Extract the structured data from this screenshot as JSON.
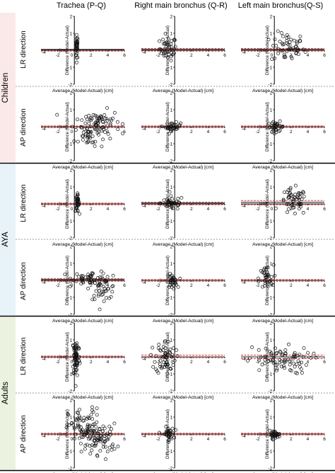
{
  "column_titles": [
    "Trachea (P-Q)",
    "Right main bronchus (Q-R)",
    "Left main bronchus(Q-S)"
  ],
  "groups": [
    {
      "label": "Children",
      "color": "#fbe9e9"
    },
    {
      "label": "AYA",
      "color": "#e7f3f8"
    },
    {
      "label": "Adults",
      "color": "#ebf2df"
    }
  ],
  "row_labels": [
    "LR direction",
    "AP direction",
    "LR direction",
    "AP direction",
    "LR direction",
    "AP direction"
  ],
  "axes": {
    "xlabel": "Average (Model-Actual) [cm]",
    "ylabel_line1": "Difference (Model-Actual)",
    "ylabel_line2": "[cm]",
    "xlim": [
      -4,
      6
    ],
    "ylim": [
      -2,
      2
    ],
    "xticks": [
      "-2",
      "0",
      "2",
      "4",
      "6"
    ],
    "xtick_values": [
      -2,
      0,
      2,
      4,
      6
    ],
    "x_minus4_label": "-4",
    "yticks": [
      "2",
      "1",
      "-1",
      "-2"
    ],
    "ytick_values": [
      2,
      1,
      -1,
      -2
    ]
  },
  "colors": {
    "mean_line": "#1a1a1a",
    "loa_line": "#d62020",
    "marker_edge": "#111111",
    "separator": "#000000",
    "dashed_separator": "#999999"
  },
  "chart_data": {
    "type": "scatter",
    "description_kind": "Bland-Altman plots, 6 rows x 3 columns",
    "panels": [
      {
        "row": 0,
        "col": 0,
        "mean": 0.05,
        "loa": [
          -0.05,
          0.05
        ],
        "clusters": [
          {
            "cx": 0.3,
            "cy": 0.2,
            "sx": 0.08,
            "sy": 0.35,
            "n": 35,
            "spread_x": 0.25
          }
        ]
      },
      {
        "row": 0,
        "col": 1,
        "mean": 0.05,
        "loa": [
          -0.05,
          0.1
        ],
        "clusters": [
          {
            "cx": -0.8,
            "cy": 0.1,
            "sx": 0.5,
            "sy": 0.35,
            "n": 40
          }
        ]
      },
      {
        "row": 0,
        "col": 2,
        "mean": 0.05,
        "loa": [
          -0.05,
          0.1
        ],
        "clusters": [
          {
            "cx": 1.6,
            "cy": 0.15,
            "sx": 1.0,
            "sy": 0.45,
            "n": 55
          }
        ]
      },
      {
        "row": 1,
        "col": 0,
        "mean": 0.0,
        "loa": [
          -0.05,
          0.05
        ],
        "clusters": [
          {
            "cx": 2.8,
            "cy": 0.3,
            "sx": 1.4,
            "sy": 0.35,
            "n": 70
          },
          {
            "cx": 1.8,
            "cy": -0.6,
            "sx": 0.9,
            "sy": 0.35,
            "n": 35
          }
        ]
      },
      {
        "row": 1,
        "col": 1,
        "mean": 0.0,
        "loa": [
          -0.05,
          0.05
        ],
        "clusters": [
          {
            "cx": -0.2,
            "cy": 0.0,
            "sx": 0.45,
            "sy": 0.12,
            "n": 35
          }
        ]
      },
      {
        "row": 1,
        "col": 2,
        "mean": 0.0,
        "loa": [
          -0.05,
          0.05
        ],
        "clusters": [
          {
            "cx": 0.2,
            "cy": 0.0,
            "sx": 0.5,
            "sy": 0.15,
            "n": 35
          }
        ]
      },
      {
        "row": 2,
        "col": 0,
        "mean": 0.0,
        "loa": [
          -0.05,
          0.05
        ],
        "clusters": [
          {
            "cx": 0.35,
            "cy": 0.05,
            "sx": 0.12,
            "sy": 0.25,
            "n": 40
          }
        ]
      },
      {
        "row": 2,
        "col": 1,
        "mean": 0.05,
        "loa": [
          -0.05,
          0.1
        ],
        "clusters": [
          {
            "cx": -0.3,
            "cy": 0.05,
            "sx": 0.7,
            "sy": 0.2,
            "n": 40
          }
        ]
      },
      {
        "row": 2,
        "col": 2,
        "mean": 0.1,
        "loa": [
          -0.05,
          0.2
        ],
        "clusters": [
          {
            "cx": 2.3,
            "cy": 0.1,
            "sx": 0.8,
            "sy": 0.4,
            "n": 55
          }
        ]
      },
      {
        "row": 3,
        "col": 0,
        "mean": 0.05,
        "loa": [
          -0.05,
          0.1
        ],
        "clusters": [
          {
            "cx": 2.0,
            "cy": 0.15,
            "sx": 1.1,
            "sy": 0.2,
            "n": 50
          },
          {
            "cx": 3.5,
            "cy": -0.5,
            "sx": 0.8,
            "sy": 0.3,
            "n": 40
          }
        ]
      },
      {
        "row": 3,
        "col": 1,
        "mean": 0.0,
        "loa": [
          -0.05,
          0.05
        ],
        "clusters": [
          {
            "cx": -0.3,
            "cy": -0.05,
            "sx": 0.3,
            "sy": 0.2,
            "n": 35
          }
        ]
      },
      {
        "row": 3,
        "col": 2,
        "mean": 0.0,
        "loa": [
          -0.05,
          0.05
        ],
        "clusters": [
          {
            "cx": -1.0,
            "cy": 0.1,
            "sx": 0.45,
            "sy": 0.4,
            "n": 35
          }
        ]
      },
      {
        "row": 4,
        "col": 0,
        "mean": 0.0,
        "loa": [
          -0.05,
          0.05
        ],
        "clusters": [
          {
            "cx": 0.2,
            "cy": 0.0,
            "sx": 0.22,
            "sy": 0.6,
            "n": 70
          }
        ]
      },
      {
        "row": 4,
        "col": 1,
        "mean": 0.0,
        "loa": [
          -0.05,
          0.1
        ],
        "clusters": [
          {
            "cx": -1.1,
            "cy": 0.0,
            "sx": 0.6,
            "sy": 0.5,
            "n": 60
          }
        ]
      },
      {
        "row": 4,
        "col": 2,
        "mean": 0.0,
        "loa": [
          -0.1,
          0.1
        ],
        "clusters": [
          {
            "cx": 0.5,
            "cy": -0.2,
            "sx": 1.9,
            "sy": 0.4,
            "n": 80
          }
        ]
      },
      {
        "row": 5,
        "col": 0,
        "mean": 0.0,
        "loa": [
          -0.05,
          0.05
        ],
        "clusters": [
          {
            "cx": 1.3,
            "cy": 0.3,
            "sx": 1.0,
            "sy": 0.6,
            "n": 90
          },
          {
            "cx": 3.3,
            "cy": -0.3,
            "sx": 0.9,
            "sy": 0.45,
            "n": 60
          }
        ]
      },
      {
        "row": 5,
        "col": 1,
        "mean": 0.0,
        "loa": [
          -0.05,
          0.05
        ],
        "clusters": [
          {
            "cx": -0.8,
            "cy": 0.0,
            "sx": 0.35,
            "sy": 0.2,
            "n": 35
          }
        ]
      },
      {
        "row": 5,
        "col": 2,
        "mean": 0.0,
        "loa": [
          -0.05,
          0.05
        ],
        "clusters": [
          {
            "cx": 0.0,
            "cy": -0.02,
            "sx": 0.35,
            "sy": 0.1,
            "n": 35
          }
        ]
      }
    ]
  }
}
